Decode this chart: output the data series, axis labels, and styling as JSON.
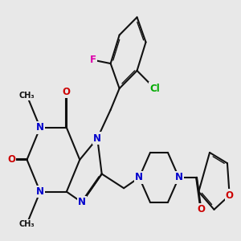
{
  "background_color": "#e8e8e8",
  "figsize": [
    3.0,
    3.0
  ],
  "dpi": 100,
  "colors": {
    "bond": "#111111",
    "N": "#0000cc",
    "O": "#cc0000",
    "F": "#dd00aa",
    "Cl": "#00aa00",
    "C": "#111111"
  }
}
